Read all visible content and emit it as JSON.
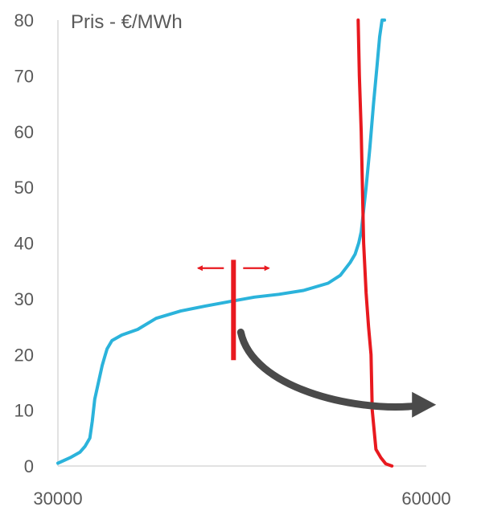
{
  "chart_data": {
    "type": "line",
    "ylabel": "Pris - €/MWh",
    "xlim": [
      30000,
      60000
    ],
    "ylim": [
      0,
      80
    ],
    "x_ticks": [
      30000,
      60000
    ],
    "y_ticks": [
      0,
      10,
      20,
      30,
      40,
      50,
      60,
      70,
      80
    ],
    "grid": false,
    "colors": {
      "supply": "#2BB3DB",
      "demand": "#E8191F",
      "arrow": "#4A4A4A",
      "axis": "#D9D9D9"
    },
    "series": [
      {
        "x": [
          30000,
          31000,
          31800,
          32200,
          32600,
          32800,
          33000,
          33300,
          33600,
          33800,
          34000,
          34400,
          35200,
          36500,
          38000,
          40000,
          42000,
          44000,
          46000,
          48000,
          50000,
          52000,
          53000,
          53800,
          54200,
          54500,
          54700,
          54850,
          55100,
          55400,
          55700,
          56000,
          56200,
          56400,
          56600
        ],
        "y": [
          0.5,
          1.5,
          2.5,
          3.5,
          5,
          8,
          12,
          15,
          18,
          19.5,
          21,
          22.5,
          23.5,
          24.5,
          26.5,
          27.8,
          28.7,
          29.5,
          30.3,
          30.8,
          31.5,
          32.8,
          34.2,
          36.5,
          38,
          40,
          42,
          45,
          50,
          57,
          65,
          72,
          77,
          80,
          80
        ]
      },
      {
        "x": [
          57200,
          56700,
          56300,
          55900,
          55600,
          55500,
          55300,
          55100,
          54900,
          54800,
          54700,
          54550,
          54450
        ],
        "y": [
          0,
          0.4,
          1.5,
          3,
          10,
          20,
          25,
          31,
          40,
          50,
          60,
          70,
          80
        ]
      }
    ],
    "annotations": [
      {
        "type": "vertical-bar",
        "x": 44300,
        "y_range": [
          19,
          37
        ],
        "arrows": "left-right",
        "arrow_y": 35.5
      },
      {
        "type": "curved-arrow",
        "from": [
          44500,
          24
        ],
        "to": [
          60800,
          11
        ]
      }
    ]
  }
}
